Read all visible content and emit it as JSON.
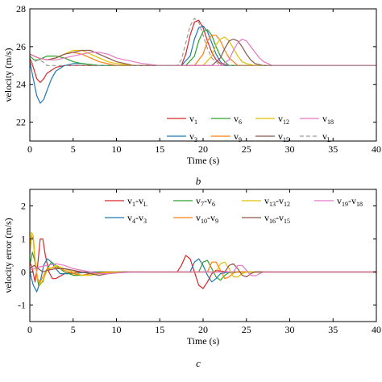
{
  "chart_data": [
    {
      "type": "line",
      "panel_label": "b",
      "xlabel": "Time (s)",
      "ylabel": "velocity (m/s)",
      "xlim": [
        0,
        40
      ],
      "ylim": [
        21,
        28
      ],
      "xticks": [
        0,
        5,
        10,
        15,
        20,
        25,
        30,
        35,
        40
      ],
      "yticks": [
        22,
        24,
        26,
        28
      ],
      "grid": false,
      "legend_position": "bottom-right",
      "series": [
        {
          "name": "v1",
          "main": "v",
          "sub": "1",
          "color": "#d62728",
          "dash": false,
          "x": [
            0,
            0.4,
            0.8,
            1.2,
            1.6,
            2,
            3,
            4,
            5,
            6,
            8,
            10,
            12,
            14,
            16,
            17.5,
            18,
            18.5,
            19,
            19.5,
            20,
            20.5,
            21,
            21.5,
            22,
            23,
            24,
            25,
            27,
            30,
            35,
            40
          ],
          "y": [
            25.4,
            24.9,
            24.3,
            24.1,
            24.3,
            24.6,
            24.9,
            25.0,
            25.0,
            25.0,
            25.0,
            25.0,
            25.0,
            25.0,
            25.0,
            25.0,
            25.6,
            26.6,
            27.3,
            27.4,
            27.0,
            26.3,
            25.7,
            25.3,
            25.1,
            25.0,
            25.0,
            25.0,
            25.0,
            25.0,
            25.0,
            25.0
          ]
        },
        {
          "name": "v3",
          "main": "v",
          "sub": "3",
          "color": "#1f77b4",
          "dash": false,
          "x": [
            0,
            0.4,
            0.8,
            1.2,
            1.6,
            2,
            2.5,
            3,
            4,
            5,
            6,
            8,
            10,
            14,
            17.5,
            18.5,
            19,
            19.5,
            20,
            20.5,
            21,
            21.5,
            22,
            22.5,
            23,
            24,
            25,
            27,
            30,
            35,
            40
          ],
          "y": [
            25.2,
            24.3,
            23.4,
            23.0,
            23.2,
            23.7,
            24.3,
            24.7,
            25.0,
            25.1,
            25.1,
            25.0,
            25.0,
            25.0,
            25.0,
            25.5,
            26.4,
            27.0,
            27.1,
            26.8,
            26.2,
            25.6,
            25.2,
            25.0,
            25.0,
            25.0,
            25.0,
            25.0,
            25.0,
            25.0,
            25.0
          ]
        },
        {
          "name": "v6",
          "main": "v",
          "sub": "6",
          "color": "#2ca02c",
          "dash": false,
          "x": [
            0,
            0.5,
            1,
            1.5,
            2,
            3,
            4,
            5,
            6,
            8,
            10,
            12,
            15,
            18,
            19,
            19.5,
            20,
            20.5,
            21,
            21.5,
            22,
            22.5,
            23,
            24,
            25,
            27,
            30,
            35,
            40
          ],
          "y": [
            25.5,
            25.3,
            25.3,
            25.4,
            25.5,
            25.5,
            25.4,
            25.2,
            25.1,
            25.0,
            25.0,
            25.0,
            25.0,
            25.0,
            25.5,
            26.3,
            26.8,
            26.9,
            26.6,
            26.0,
            25.5,
            25.2,
            25.0,
            25.0,
            25.0,
            25.0,
            25.0,
            25.0,
            25.0
          ]
        },
        {
          "name": "v9",
          "main": "v",
          "sub": "9",
          "color": "#ff7f0e",
          "dash": false,
          "x": [
            0,
            0.5,
            1,
            2,
            3,
            4,
            5,
            6,
            7,
            8,
            10,
            12,
            15,
            19,
            20,
            20.5,
            21,
            21.5,
            22,
            22.5,
            23,
            23.5,
            24,
            25,
            27,
            30,
            35,
            40
          ],
          "y": [
            25.6,
            25.5,
            25.4,
            25.3,
            25.4,
            25.6,
            25.7,
            25.6,
            25.4,
            25.2,
            25.0,
            25.0,
            25.0,
            25.0,
            25.6,
            26.3,
            26.6,
            26.6,
            26.3,
            25.8,
            25.4,
            25.2,
            25.0,
            25.0,
            25.0,
            25.0,
            25.0,
            25.0
          ]
        },
        {
          "name": "v12",
          "main": "v",
          "sub": "12",
          "color": "#e0c000",
          "dash": false,
          "x": [
            0,
            0.5,
            1,
            2,
            3,
            4,
            5,
            6,
            7,
            8,
            9,
            10,
            12,
            15,
            20,
            21,
            21.5,
            22,
            22.5,
            23,
            23.5,
            24,
            24.5,
            25,
            26,
            28,
            30,
            35,
            40
          ],
          "y": [
            25.6,
            25.5,
            25.4,
            25.3,
            25.4,
            25.6,
            25.8,
            25.8,
            25.6,
            25.4,
            25.2,
            25.1,
            25.0,
            25.0,
            25.0,
            25.5,
            26.1,
            26.4,
            26.5,
            26.3,
            25.9,
            25.5,
            25.2,
            25.1,
            25.0,
            25.0,
            25.0,
            25.0,
            25.0
          ]
        },
        {
          "name": "v15",
          "main": "v",
          "sub": "15",
          "color": "#8c564b",
          "dash": false,
          "x": [
            0,
            0.5,
            1,
            2,
            3,
            4,
            5,
            6,
            7,
            8,
            9,
            10,
            12,
            15,
            21,
            22,
            22.5,
            23,
            23.5,
            24,
            24.5,
            25,
            25.5,
            26,
            27,
            28,
            30,
            35,
            40
          ],
          "y": [
            25.6,
            25.5,
            25.4,
            25.3,
            25.4,
            25.6,
            25.7,
            25.8,
            25.8,
            25.6,
            25.4,
            25.2,
            25.0,
            25.0,
            25.0,
            25.4,
            25.9,
            26.3,
            26.4,
            26.3,
            26.0,
            25.6,
            25.3,
            25.1,
            25.0,
            25.0,
            25.0,
            25.0,
            25.0
          ]
        },
        {
          "name": "v18",
          "main": "v",
          "sub": "18",
          "color": "#e377c2",
          "dash": false,
          "x": [
            0,
            0.5,
            1,
            2,
            3,
            4,
            5,
            6,
            7,
            8,
            9,
            10,
            11,
            13,
            15,
            22,
            23,
            23.5,
            24,
            24.5,
            25,
            25.5,
            26,
            26.5,
            27,
            28,
            29,
            30,
            35,
            40
          ],
          "y": [
            25.6,
            25.5,
            25.4,
            25.3,
            25.3,
            25.4,
            25.5,
            25.6,
            25.7,
            25.7,
            25.6,
            25.4,
            25.3,
            25.1,
            25.0,
            25.0,
            25.3,
            25.8,
            26.2,
            26.4,
            26.3,
            26.0,
            25.7,
            25.4,
            25.2,
            25.0,
            25.0,
            25.0,
            25.0,
            25.0
          ]
        },
        {
          "name": "vL",
          "main": "v",
          "sub": "L",
          "color": "#999999",
          "dash": true,
          "x": [
            0,
            0.5,
            1,
            1.5,
            2,
            3,
            5,
            10,
            17,
            17.5,
            18,
            18.5,
            19,
            19.5,
            20,
            20.5,
            21,
            22,
            23,
            25,
            30,
            40
          ],
          "y": [
            25.0,
            25.2,
            25.3,
            25.2,
            25.0,
            25.0,
            25.0,
            25.0,
            25.0,
            25.3,
            26.2,
            27.1,
            27.5,
            27.3,
            26.6,
            25.9,
            25.4,
            25.0,
            25.0,
            25.0,
            25.0,
            25.0
          ]
        }
      ]
    },
    {
      "type": "line",
      "panel_label": "c",
      "xlabel": "Time (s)",
      "ylabel": "velocity error (m/s)",
      "xlim": [
        0,
        40
      ],
      "ylim": [
        -1.5,
        2.5
      ],
      "xticks": [
        0,
        5,
        10,
        15,
        20,
        25,
        30,
        35,
        40
      ],
      "yticks": [
        -1,
        0,
        1,
        2
      ],
      "grid": false,
      "legend_position": "top",
      "series": [
        {
          "name": "v1-vL",
          "a": "v",
          "asub": "1",
          "b": "v",
          "bsub": "L",
          "color": "#d62728",
          "x": [
            0,
            0.3,
            0.6,
            0.9,
            1.2,
            1.5,
            1.8,
            2.2,
            2.6,
            3,
            4,
            5,
            8,
            17,
            17.5,
            18,
            18.5,
            19,
            19.5,
            20,
            20.5,
            21,
            21.5,
            22,
            23,
            25,
            40
          ],
          "y": [
            0.3,
            0.1,
            -0.3,
            0.2,
            1.0,
            1.0,
            0.5,
            0.0,
            -0.2,
            -0.2,
            -0.05,
            0.0,
            0.0,
            0.0,
            0.2,
            0.5,
            0.4,
            0.0,
            -0.4,
            -0.5,
            -0.3,
            -0.05,
            0.05,
            0.03,
            0.0,
            0.0,
            0.0
          ]
        },
        {
          "name": "v4-v3",
          "a": "v",
          "asub": "4",
          "b": "v",
          "bsub": "3",
          "color": "#1f77b4",
          "x": [
            0,
            0.4,
            0.8,
            1.2,
            1.6,
            2,
            2.5,
            3,
            3.5,
            4,
            5,
            6,
            8,
            17,
            18.5,
            19,
            19.5,
            20,
            20.5,
            21,
            21.5,
            22,
            23,
            25,
            40
          ],
          "y": [
            0,
            -0.4,
            -0.6,
            -0.3,
            0.2,
            0.4,
            0.3,
            0.1,
            -0.05,
            -0.05,
            -0.05,
            -0.02,
            0.0,
            0.0,
            0.0,
            0.3,
            0.4,
            0.2,
            -0.1,
            -0.3,
            -0.2,
            -0.05,
            0.0,
            0.0,
            0.0
          ]
        },
        {
          "name": "v7-v6",
          "a": "v",
          "asub": "7",
          "b": "v",
          "bsub": "6",
          "color": "#2ca02c",
          "x": [
            0,
            0.3,
            0.6,
            1,
            1.5,
            2,
            2.5,
            3,
            4,
            5,
            6,
            8,
            18,
            19.5,
            20,
            20.5,
            21,
            21.5,
            22,
            22.5,
            23,
            24,
            26,
            40
          ],
          "y": [
            0.2,
            0.6,
            0.3,
            -0.4,
            -0.3,
            0.1,
            0.3,
            0.2,
            0.0,
            -0.1,
            -0.1,
            0.0,
            0.0,
            0.0,
            0.3,
            0.35,
            0.1,
            -0.15,
            -0.25,
            -0.1,
            -0.02,
            0.0,
            0.0,
            0.0
          ]
        },
        {
          "name": "v10-v9",
          "a": "v",
          "asub": "10",
          "b": "v",
          "bsub": "9",
          "color": "#ff7f0e",
          "x": [
            0,
            0.2,
            0.4,
            0.6,
            0.9,
            1.2,
            1.6,
            2,
            3,
            4,
            5,
            6,
            7,
            9,
            19,
            20.5,
            21,
            21.5,
            22,
            22.5,
            23,
            23.5,
            24,
            25,
            40
          ],
          "y": [
            0.5,
            1.1,
            1.0,
            0.3,
            -0.2,
            -0.3,
            -0.1,
            0.1,
            0.15,
            0.05,
            -0.05,
            -0.1,
            -0.05,
            0.0,
            0.0,
            0.0,
            0.3,
            0.3,
            0.05,
            -0.2,
            -0.15,
            -0.03,
            0.0,
            0.0,
            0.0
          ]
        },
        {
          "name": "v13-v12",
          "a": "v",
          "asub": "13",
          "b": "v",
          "bsub": "12",
          "color": "#e0c000",
          "x": [
            0,
            0.2,
            0.4,
            0.6,
            0.9,
            1.2,
            1.6,
            2,
            3,
            4,
            5,
            6,
            7,
            8,
            10,
            20,
            21.5,
            22,
            22.5,
            23,
            23.5,
            24,
            24.5,
            25,
            26,
            40
          ],
          "y": [
            0.6,
            1.2,
            1.1,
            0.4,
            -0.2,
            -0.4,
            -0.2,
            0.05,
            0.2,
            0.1,
            0.0,
            -0.1,
            -0.1,
            -0.05,
            0.0,
            0.0,
            0.0,
            0.25,
            0.3,
            0.1,
            -0.15,
            -0.15,
            -0.05,
            0.0,
            0.0,
            0.0
          ]
        },
        {
          "name": "v16-v15",
          "a": "v",
          "asub": "16",
          "b": "v",
          "bsub": "15",
          "color": "#8c564b",
          "x": [
            0,
            0.5,
            1,
            1.5,
            2,
            3,
            4,
            5,
            6,
            7,
            8,
            9,
            11,
            21,
            22.5,
            23,
            23.5,
            24,
            24.5,
            25,
            25.5,
            26,
            27,
            40
          ],
          "y": [
            0.1,
            0.2,
            0.1,
            0.0,
            0.05,
            0.1,
            0.1,
            0.05,
            0.0,
            -0.05,
            -0.1,
            -0.05,
            0.0,
            0.0,
            0.0,
            0.2,
            0.25,
            0.1,
            -0.1,
            -0.15,
            -0.05,
            0.0,
            0.0,
            0.0
          ]
        },
        {
          "name": "v19-v18",
          "a": "v",
          "asub": "19",
          "b": "v",
          "bsub": "18",
          "color": "#e377c2",
          "x": [
            0,
            0.5,
            1,
            2,
            3,
            4,
            5,
            6,
            7,
            8,
            9,
            10,
            12,
            22,
            23.5,
            24,
            24.5,
            25,
            25.5,
            26,
            26.5,
            27,
            28,
            40
          ],
          "y": [
            0.05,
            0.1,
            0.15,
            0.2,
            0.25,
            0.2,
            0.1,
            0.05,
            0.0,
            -0.05,
            -0.05,
            -0.03,
            0.0,
            0.0,
            0.0,
            0.2,
            0.2,
            0.05,
            -0.1,
            -0.12,
            -0.05,
            0.0,
            0.0,
            0.0
          ]
        }
      ]
    }
  ]
}
